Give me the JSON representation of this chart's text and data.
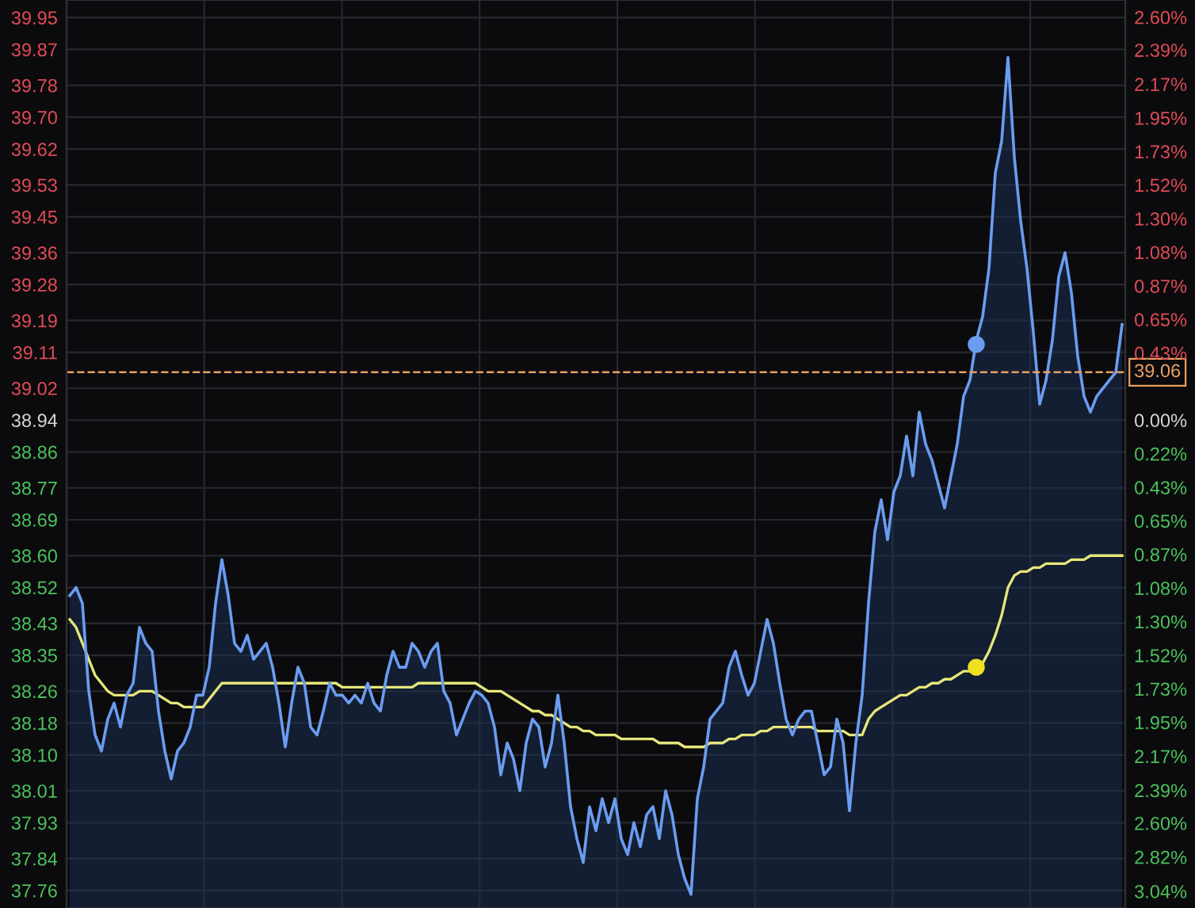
{
  "chart_data": {
    "type": "area",
    "categories": [
      null,
      null,
      null,
      null,
      null,
      null,
      null,
      null,
      null,
      null,
      null,
      null,
      null,
      null,
      null,
      null,
      null,
      null,
      null,
      null,
      null,
      null,
      null,
      null,
      null,
      null,
      null,
      null,
      null,
      null,
      null,
      null,
      null,
      null,
      null,
      null,
      null,
      null,
      null,
      null,
      null,
      null,
      null,
      null,
      null,
      null,
      null,
      null,
      null,
      null,
      null,
      null,
      null,
      null,
      null,
      null,
      null,
      null,
      null,
      null,
      null,
      null,
      null,
      null,
      null,
      null,
      null,
      null,
      null,
      null,
      null,
      null,
      null,
      null,
      null,
      null,
      null,
      null,
      null,
      null,
      null,
      null,
      null,
      null,
      null,
      null,
      null,
      null,
      null,
      null,
      null,
      null,
      null,
      null,
      null,
      null,
      null,
      null,
      null,
      null,
      null,
      null,
      null,
      null,
      null,
      null,
      null,
      null,
      null,
      null,
      null,
      null,
      null,
      null,
      null,
      null,
      null,
      null,
      null,
      null,
      null,
      null,
      null,
      null,
      null,
      null,
      null,
      null,
      null,
      null,
      null,
      null,
      null,
      null,
      null,
      null,
      null,
      null,
      null,
      null,
      null,
      null,
      null,
      null,
      null,
      null,
      null,
      null,
      null,
      null,
      null,
      null,
      null,
      null,
      null,
      null,
      null,
      null,
      null,
      null,
      null,
      null,
      null,
      null,
      null,
      null,
      null
    ],
    "series": [
      {
        "color": "#6a9cf0",
        "values": [
          38.5,
          38.52,
          38.48,
          38.26,
          38.15,
          38.11,
          38.19,
          38.23,
          38.17,
          38.25,
          38.28,
          38.42,
          38.38,
          38.36,
          38.21,
          38.11,
          38.04,
          38.11,
          38.13,
          38.17,
          38.25,
          38.25,
          38.32,
          38.48,
          38.59,
          38.5,
          38.38,
          38.36,
          38.4,
          38.34,
          38.36,
          38.38,
          38.32,
          38.23,
          38.12,
          38.23,
          38.32,
          38.28,
          38.17,
          38.15,
          38.21,
          38.28,
          38.25,
          38.25,
          38.23,
          38.25,
          38.23,
          38.28,
          38.23,
          38.21,
          38.3,
          38.36,
          38.32,
          38.32,
          38.38,
          38.36,
          38.32,
          38.36,
          38.38,
          38.26,
          38.23,
          38.15,
          38.19,
          38.23,
          38.26,
          38.25,
          38.23,
          38.17,
          38.05,
          38.13,
          38.09,
          38.01,
          38.13,
          38.19,
          38.17,
          38.07,
          38.13,
          38.25,
          38.13,
          37.97,
          37.89,
          37.83,
          37.97,
          37.91,
          37.99,
          37.93,
          37.99,
          37.89,
          37.85,
          37.93,
          37.87,
          37.95,
          37.97,
          37.89,
          38.01,
          37.95,
          37.85,
          37.79,
          37.75,
          37.99,
          38.07,
          38.19,
          38.21,
          38.23,
          38.32,
          38.36,
          38.3,
          38.25,
          38.28,
          38.36,
          38.44,
          38.38,
          38.28,
          38.19,
          38.15,
          38.19,
          38.21,
          38.21,
          38.13,
          38.05,
          38.07,
          38.19,
          38.13,
          37.96,
          38.13,
          38.25,
          38.48,
          38.66,
          38.74,
          38.64,
          38.76,
          38.8,
          38.9,
          38.8,
          38.96,
          38.88,
          38.84,
          38.78,
          38.72,
          38.8,
          38.88,
          39.0,
          39.04,
          39.14,
          39.2,
          39.32,
          39.56,
          39.64,
          39.85,
          39.6,
          39.44,
          39.32,
          39.16,
          38.98,
          39.04,
          39.14,
          39.3,
          39.36,
          39.26,
          39.1,
          39.0,
          38.96,
          39.0,
          39.02,
          39.04,
          39.06,
          39.18
        ]
      },
      {
        "type": "line",
        "color": "#e6e67a",
        "values": [
          38.44,
          38.42,
          38.38,
          38.34,
          38.3,
          38.28,
          38.26,
          38.25,
          38.25,
          38.25,
          38.25,
          38.26,
          38.26,
          38.26,
          38.25,
          38.24,
          38.23,
          38.23,
          38.22,
          38.22,
          38.22,
          38.22,
          38.24,
          38.26,
          38.28,
          38.28,
          38.28,
          38.28,
          38.28,
          38.28,
          38.28,
          38.28,
          38.28,
          38.28,
          38.28,
          38.28,
          38.28,
          38.28,
          38.28,
          38.28,
          38.28,
          38.28,
          38.28,
          38.27,
          38.27,
          38.27,
          38.27,
          38.27,
          38.27,
          38.27,
          38.27,
          38.27,
          38.27,
          38.27,
          38.27,
          38.28,
          38.28,
          38.28,
          38.28,
          38.28,
          38.28,
          38.28,
          38.28,
          38.28,
          38.28,
          38.27,
          38.26,
          38.26,
          38.26,
          38.25,
          38.24,
          38.23,
          38.22,
          38.21,
          38.21,
          38.2,
          38.2,
          38.19,
          38.18,
          38.17,
          38.17,
          38.16,
          38.16,
          38.15,
          38.15,
          38.15,
          38.15,
          38.14,
          38.14,
          38.14,
          38.14,
          38.14,
          38.14,
          38.13,
          38.13,
          38.13,
          38.13,
          38.12,
          38.12,
          38.12,
          38.12,
          38.13,
          38.13,
          38.13,
          38.14,
          38.14,
          38.15,
          38.15,
          38.15,
          38.16,
          38.16,
          38.17,
          38.17,
          38.17,
          38.17,
          38.17,
          38.17,
          38.17,
          38.16,
          38.16,
          38.16,
          38.16,
          38.16,
          38.15,
          38.15,
          38.15,
          38.19,
          38.21,
          38.22,
          38.23,
          38.24,
          38.25,
          38.25,
          38.26,
          38.27,
          38.27,
          38.28,
          38.28,
          38.29,
          38.29,
          38.3,
          38.31,
          38.31,
          38.32,
          38.33,
          38.36,
          38.4,
          38.45,
          38.52,
          38.55,
          38.56,
          38.56,
          38.57,
          38.57,
          38.58,
          38.58,
          38.58,
          38.58,
          38.59,
          38.59,
          38.59,
          38.6,
          38.6,
          38.6,
          38.6,
          38.6,
          38.6
        ]
      },
      {
        "type": "scatter",
        "marker": "circle",
        "color": "#6a9cf0",
        "values": [
          null,
          null,
          null,
          null,
          null,
          null,
          null,
          null,
          null,
          null,
          null,
          null,
          null,
          null,
          null,
          null,
          null,
          null,
          null,
          null,
          null,
          null,
          null,
          null,
          null,
          null,
          null,
          null,
          null,
          null,
          null,
          null,
          null,
          null,
          null,
          null,
          null,
          null,
          null,
          null,
          null,
          null,
          null,
          null,
          null,
          null,
          null,
          null,
          null,
          null,
          null,
          null,
          null,
          null,
          null,
          null,
          null,
          null,
          null,
          null,
          null,
          null,
          null,
          null,
          null,
          null,
          null,
          null,
          null,
          null,
          null,
          null,
          null,
          null,
          null,
          null,
          null,
          null,
          null,
          null,
          null,
          null,
          null,
          null,
          null,
          null,
          null,
          null,
          null,
          null,
          null,
          null,
          null,
          null,
          null,
          null,
          null,
          null,
          null,
          null,
          null,
          null,
          null,
          null,
          null,
          null,
          null,
          null,
          null,
          null,
          null,
          null,
          null,
          null,
          null,
          null,
          null,
          null,
          null,
          null,
          null,
          null,
          null,
          null,
          null,
          null,
          null,
          null,
          null,
          null,
          null,
          null,
          null,
          null,
          null,
          null,
          null,
          null,
          null,
          null,
          null,
          null,
          null,
          39.13,
          null,
          null,
          null,
          null,
          null,
          null,
          null,
          null,
          null,
          null,
          null,
          null,
          null,
          null,
          null,
          null,
          null,
          null,
          null,
          null,
          null,
          null,
          null
        ]
      },
      {
        "type": "scatter",
        "marker": "circle",
        "color": "#f0e020",
        "values": [
          null,
          null,
          null,
          null,
          null,
          null,
          null,
          null,
          null,
          null,
          null,
          null,
          null,
          null,
          null,
          null,
          null,
          null,
          null,
          null,
          null,
          null,
          null,
          null,
          null,
          null,
          null,
          null,
          null,
          null,
          null,
          null,
          null,
          null,
          null,
          null,
          null,
          null,
          null,
          null,
          null,
          null,
          null,
          null,
          null,
          null,
          null,
          null,
          null,
          null,
          null,
          null,
          null,
          null,
          null,
          null,
          null,
          null,
          null,
          null,
          null,
          null,
          null,
          null,
          null,
          null,
          null,
          null,
          null,
          null,
          null,
          null,
          null,
          null,
          null,
          null,
          null,
          null,
          null,
          null,
          null,
          null,
          null,
          null,
          null,
          null,
          null,
          null,
          null,
          null,
          null,
          null,
          null,
          null,
          null,
          null,
          null,
          null,
          null,
          null,
          null,
          null,
          null,
          null,
          null,
          null,
          null,
          null,
          null,
          null,
          null,
          null,
          null,
          null,
          null,
          null,
          null,
          null,
          null,
          null,
          null,
          null,
          null,
          null,
          null,
          null,
          null,
          null,
          null,
          null,
          null,
          null,
          null,
          null,
          null,
          null,
          null,
          null,
          null,
          null,
          null,
          null,
          null,
          38.32,
          null,
          null,
          null,
          null,
          null,
          null,
          null,
          null,
          null,
          null,
          null,
          null,
          null,
          null,
          null,
          null,
          null,
          null,
          null,
          null,
          null,
          null,
          null
        ]
      }
    ],
    "ylim": [
      37.716,
      39.994
    ],
    "yticks": [
      39.95,
      39.87,
      39.78,
      {
        "value": 39.7,
        "label": "39.70"
      },
      39.62,
      39.53,
      39.45,
      39.36,
      39.28,
      39.19,
      39.11,
      39.02,
      38.94,
      38.86,
      38.77,
      38.69,
      {
        "value": 38.6,
        "label": "38.60"
      },
      38.52,
      38.43,
      38.35,
      38.26,
      38.18,
      {
        "value": 38.1,
        "label": "38.10"
      },
      38.01,
      37.93,
      37.84,
      37.76
    ],
    "y2lim": [
      -3.143,
      2.707
    ],
    "y2ticks": [
      {
        "value": 2.596,
        "label": "2.60%"
      },
      {
        "value": 2.385,
        "label": "2.39%"
      },
      {
        "value": 2.165,
        "label": "2.17%"
      },
      {
        "value": 1.947,
        "label": "1.95%"
      },
      {
        "value": 1.731,
        "label": "1.73%"
      },
      {
        "value": 1.515,
        "label": "1.52%"
      },
      {
        "value": 1.298,
        "label": "1.30%"
      },
      {
        "value": 1.082,
        "label": "1.08%"
      },
      {
        "value": 0.865,
        "label": "0.87%"
      },
      {
        "value": 0.649,
        "label": "0.65%"
      },
      {
        "value": 0.433,
        "label": "0.43%"
      },
      {
        "value": 0.0,
        "label": "0.00%"
      },
      {
        "value": -0.216,
        "label": "0.22%"
      },
      {
        "value": -0.433,
        "label": "0.43%"
      },
      {
        "value": -0.649,
        "label": "0.65%"
      },
      {
        "value": -0.865,
        "label": "0.87%"
      },
      {
        "value": -1.082,
        "label": "1.08%"
      },
      {
        "value": -1.298,
        "label": "1.30%"
      },
      {
        "value": -1.515,
        "label": "1.52%"
      },
      {
        "value": -1.731,
        "label": "1.73%"
      },
      {
        "value": -1.947,
        "label": "1.95%"
      },
      {
        "value": -2.165,
        "label": "2.17%"
      },
      {
        "value": -2.385,
        "label": "2.39%"
      },
      {
        "value": -2.596,
        "label": "2.60%"
      },
      {
        "value": -2.815,
        "label": "2.82%"
      },
      {
        "value": -3.035,
        "label": "3.04%"
      }
    ],
    "ref_lines": [
      {
        "axis": "y",
        "value": 39.06,
        "label": "39.06",
        "color": "#e8a060",
        "line_style": "dashed"
      }
    ],
    "grid": true,
    "marker": "none",
    "line_style": "solid"
  }
}
